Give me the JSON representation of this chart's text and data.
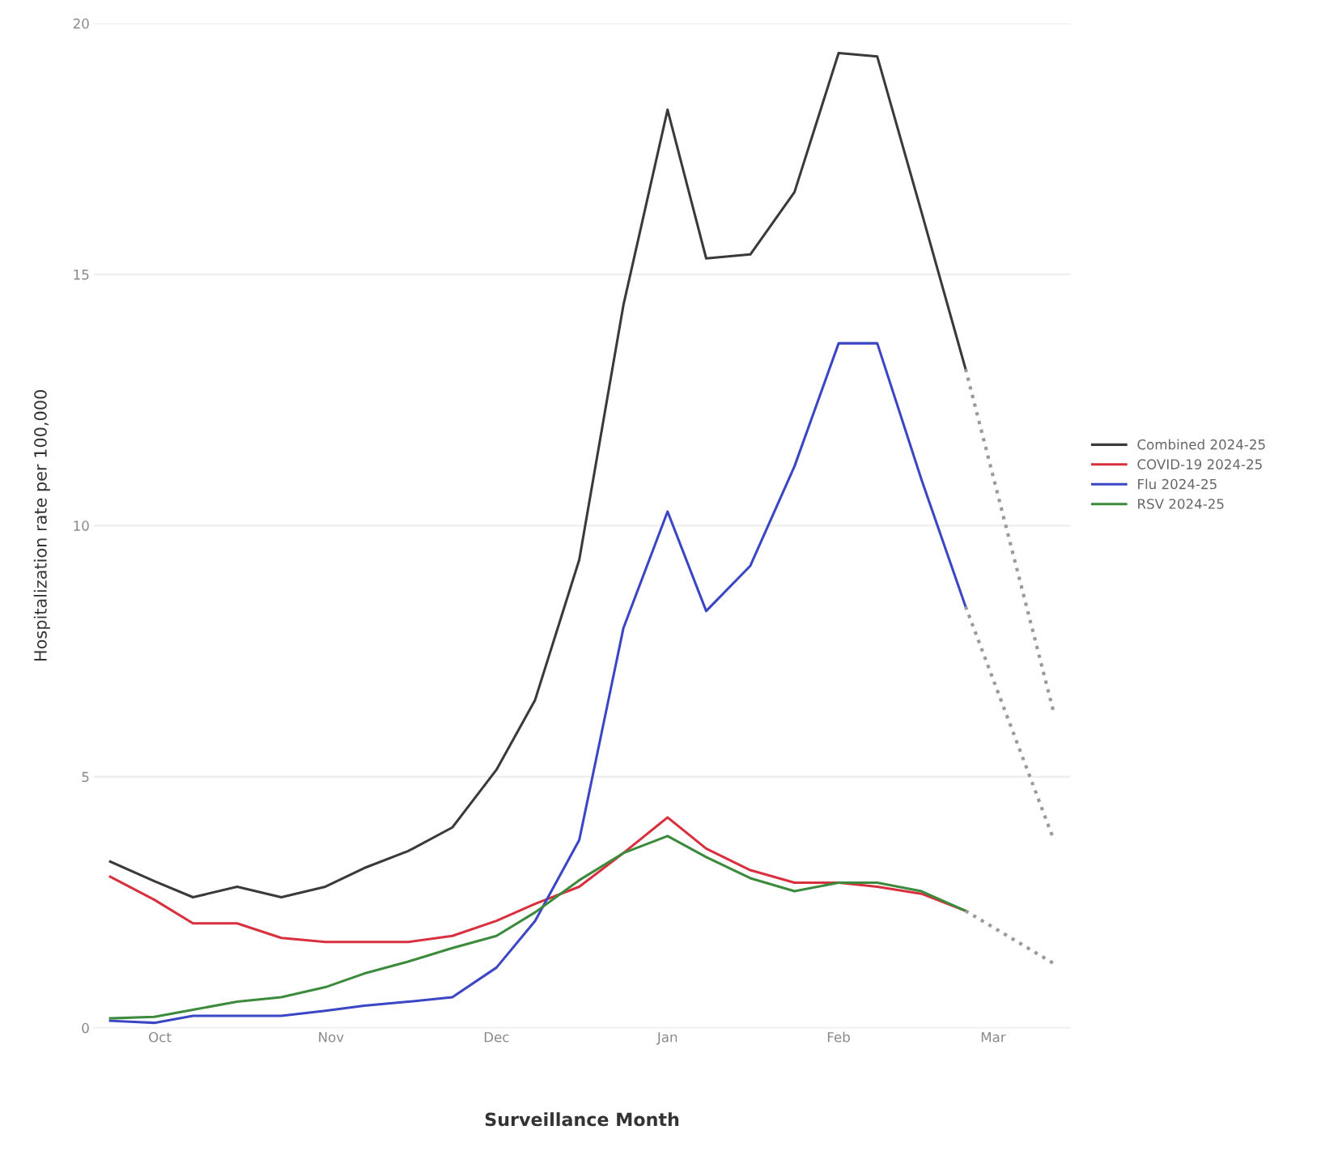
{
  "chart_data": {
    "type": "line",
    "xlabel": "Surveillance Month",
    "ylabel": "Hospitalization rate per 100,000",
    "x": [
      "2024-09-22",
      "2024-09-30",
      "2024-10-07",
      "2024-10-15",
      "2024-10-23",
      "2024-10-31",
      "2024-11-07",
      "2024-11-15",
      "2024-11-23",
      "2024-12-01",
      "2024-12-08",
      "2024-12-16",
      "2024-12-24",
      "2025-01-01",
      "2025-01-08",
      "2025-01-16",
      "2025-01-24",
      "2025-02-01",
      "2025-02-08",
      "2025-02-16",
      "2025-02-24"
    ],
    "xlim": [
      "2024-09-19",
      "2025-03-15"
    ],
    "xticks": [
      {
        "value": "2024-10-01",
        "label": "Oct"
      },
      {
        "value": "2024-11-01",
        "label": "Nov"
      },
      {
        "value": "2024-12-01",
        "label": "Dec"
      },
      {
        "value": "2025-01-01",
        "label": "Jan"
      },
      {
        "value": "2025-02-01",
        "label": "Feb"
      },
      {
        "value": "2025-03-01",
        "label": "Mar"
      }
    ],
    "ylim": [
      0,
      20
    ],
    "yticks": [
      0,
      5,
      10,
      15,
      20
    ],
    "grid": "y",
    "legend": "right",
    "line_style": "solid",
    "series": [
      {
        "name": "Combined 2024-25",
        "color": "#3a3a3a",
        "values": [
          3.31,
          2.92,
          2.6,
          2.81,
          2.6,
          2.81,
          3.18,
          3.52,
          3.99,
          5.14,
          6.53,
          9.32,
          14.39,
          18.28,
          15.32,
          15.4,
          16.64,
          19.41,
          19.34,
          16.25,
          13.12
        ]
      },
      {
        "name": "COVID-19 2024-25",
        "color": "#d9303f",
        "values": [
          3.01,
          2.55,
          2.08,
          2.08,
          1.79,
          1.71,
          1.71,
          1.71,
          1.83,
          2.13,
          2.47,
          2.81,
          3.48,
          4.19,
          3.57,
          3.14,
          2.89,
          2.89,
          2.81,
          2.67,
          2.33
        ]
      },
      {
        "name": "Flu 2024-25",
        "color": "#3b46c4",
        "values": [
          0.14,
          0.1,
          0.24,
          0.24,
          0.24,
          0.34,
          0.44,
          0.52,
          0.61,
          1.2,
          2.13,
          3.74,
          7.96,
          10.28,
          8.3,
          9.2,
          11.18,
          13.63,
          13.63,
          10.92,
          8.39
        ]
      },
      {
        "name": "RSV 2024-25",
        "color": "#3c8a3c",
        "values": [
          0.19,
          0.22,
          0.36,
          0.52,
          0.61,
          0.81,
          1.08,
          1.32,
          1.59,
          1.83,
          2.3,
          2.94,
          3.48,
          3.82,
          3.4,
          2.98,
          2.72,
          2.89,
          2.89,
          2.72,
          2.33
        ]
      },
      {
        "x": [
          "2025-02-24",
          "2025-03-12"
        ],
        "color": "#9a9a9a",
        "line_style": "dotted",
        "values": [
          13.12,
          6.27
        ]
      },
      {
        "x": [
          "2025-02-24",
          "2025-03-12"
        ],
        "color": "#9a9a9a",
        "line_style": "dotted",
        "values": [
          8.39,
          3.74
        ]
      },
      {
        "x": [
          "2025-02-24",
          "2025-03-12"
        ],
        "color": "#9a9a9a",
        "line_style": "dotted",
        "values": [
          2.33,
          1.28
        ]
      }
    ]
  }
}
